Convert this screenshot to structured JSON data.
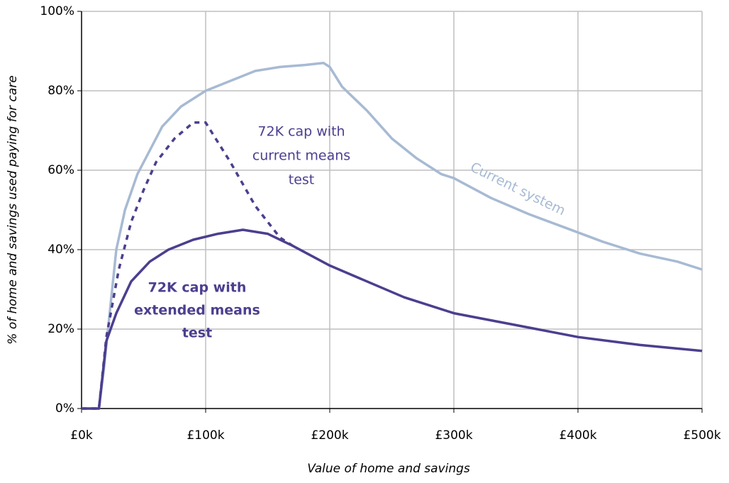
{
  "chart_data": {
    "type": "line",
    "x_label": "Value of home and savings",
    "y_label": "% of home and savings used paying for care",
    "xlim": [
      0,
      500
    ],
    "ylim": [
      0,
      100
    ],
    "xticks": [
      {
        "value": 0,
        "label": "£0k"
      },
      {
        "value": 100,
        "label": "£100k"
      },
      {
        "value": 200,
        "label": "£200k"
      },
      {
        "value": 300,
        "label": "£300k"
      },
      {
        "value": 400,
        "label": "£400k"
      },
      {
        "value": 500,
        "label": "£500k"
      }
    ],
    "yticks": [
      {
        "value": 0,
        "label": "0%"
      },
      {
        "value": 20,
        "label": "20%"
      },
      {
        "value": 40,
        "label": "40%"
      },
      {
        "value": 60,
        "label": "60%"
      },
      {
        "value": 80,
        "label": "80%"
      },
      {
        "value": 100,
        "label": "100%"
      }
    ],
    "grid": true,
    "series": [
      {
        "name": "Current system",
        "color": "#a7bad3",
        "dash": false,
        "x": [
          0,
          14,
          18,
          28,
          35,
          45,
          55,
          65,
          80,
          100,
          120,
          140,
          160,
          180,
          195,
          200,
          210,
          230,
          250,
          270,
          290,
          300,
          330,
          360,
          390,
          420,
          450,
          480,
          500
        ],
        "values": [
          0,
          0,
          10,
          40,
          50,
          59,
          65,
          71,
          76,
          80,
          82.5,
          85,
          86,
          86.5,
          87,
          86,
          81,
          75,
          68,
          63,
          59,
          58,
          53,
          49,
          45.5,
          42,
          39,
          37,
          35
        ]
      },
      {
        "name": "72K cap with current means test",
        "color": "#4b3f8f",
        "dash": true,
        "x": [
          0,
          14,
          20,
          30,
          40,
          50,
          60,
          75,
          90,
          100,
          120,
          140,
          160,
          170
        ],
        "values": [
          0,
          0,
          18,
          35,
          47,
          55,
          62,
          68,
          72,
          72,
          62,
          51,
          43,
          41
        ]
      },
      {
        "name": "72K cap with extended means test",
        "color": "#4b3f8f",
        "dash": false,
        "x": [
          0,
          14,
          20,
          28,
          40,
          55,
          70,
          90,
          110,
          130,
          150,
          170,
          200,
          230,
          260,
          300,
          350,
          400,
          450,
          500
        ],
        "values": [
          0,
          0,
          17,
          24,
          32,
          37,
          40,
          42.5,
          44,
          45,
          44,
          41,
          36,
          32,
          28,
          24,
          21,
          18,
          16,
          14.5
        ]
      }
    ],
    "annotations": [
      {
        "lines": [
          "72K cap with",
          "current means",
          "test"
        ],
        "color": "#4b3f8f",
        "bold": false
      },
      {
        "lines": [
          "Current system"
        ],
        "color": "#a7bad3",
        "bold": false
      },
      {
        "lines": [
          "72K cap with",
          "extended means",
          "test"
        ],
        "color": "#4b3f8f",
        "bold": true
      }
    ]
  }
}
